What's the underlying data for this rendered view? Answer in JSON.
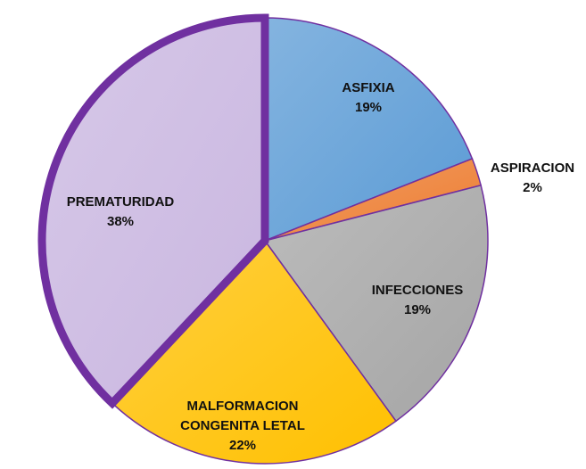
{
  "chart_data": {
    "type": "pie",
    "categories": [
      "ASFIXIA",
      "ASPIRACION",
      "INFECCIONES",
      "MALFORMACION CONGENITA LETAL",
      "PREMATURIDAD"
    ],
    "values": [
      19,
      2,
      19,
      22,
      38
    ],
    "value_labels": [
      "19%",
      "2%",
      "19%",
      "22%",
      "38%"
    ],
    "colors": [
      "#5b9bd5",
      "#ed7d31",
      "#a5a5a5",
      "#ffc000",
      "#c9b6e0"
    ],
    "highlight_color": "#7030a0"
  }
}
